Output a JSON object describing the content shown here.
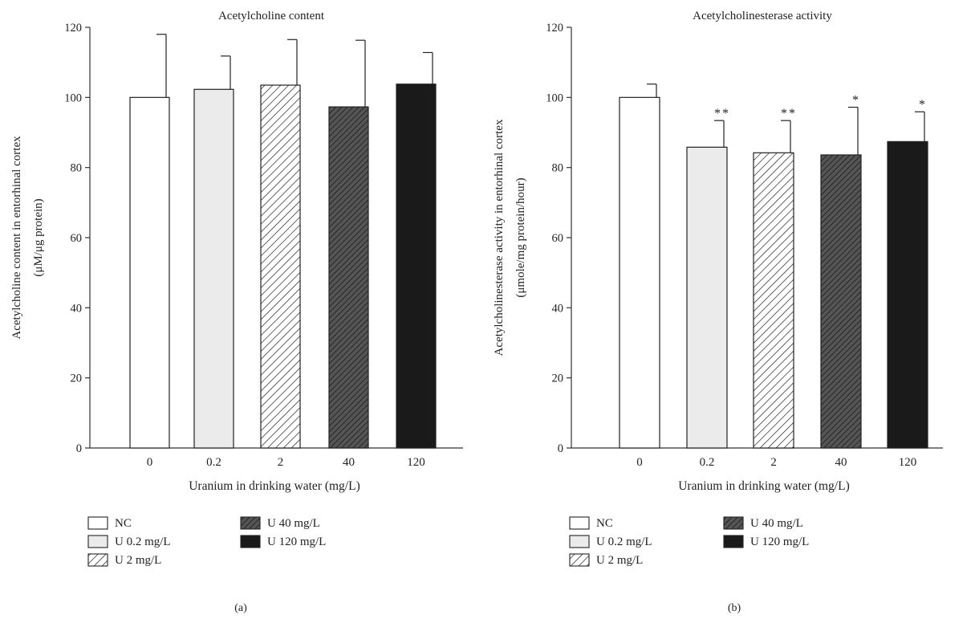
{
  "colors": {
    "axis": "#333333",
    "bar_stroke": "#222222",
    "nc_fill": "#ffffff",
    "u02_fill": "#ebebeb",
    "u2_fill": "#ffffff",
    "u40_fill": "#555555",
    "u120_fill": "#1a1a1a"
  },
  "chart_data": [
    {
      "type": "bar",
      "panel_label": "(a)",
      "title": "Acetylcholine content",
      "xlabel": "Uranium in drinking water (mg/L)",
      "ylabel_line1": "Acetylcholine content in entorhinal cortex",
      "ylabel_line2": "(μM/μg protein)",
      "ylim": [
        0,
        120
      ],
      "yticks": [
        "0",
        "20",
        "40",
        "60",
        "80",
        "100",
        "120"
      ],
      "categories": [
        "0",
        "0.2",
        "2",
        "40",
        "120"
      ],
      "values": [
        100,
        102.3,
        103.5,
        97.3,
        103.8
      ],
      "errors": [
        18,
        9.5,
        13,
        19,
        9
      ],
      "significance": [
        "",
        "",
        "",
        "",
        ""
      ],
      "fills": [
        "nc",
        "u02",
        "u2",
        "u40",
        "u120"
      ],
      "legend": [
        "NC",
        "U 0.2 mg/L",
        "U 2 mg/L",
        "U 40 mg/L",
        "U 120 mg/L"
      ],
      "grid": false
    },
    {
      "type": "bar",
      "panel_label": "(b)",
      "title": "Acetylcholinesterase activity",
      "xlabel": "Uranium in drinking water (mg/L)",
      "ylabel_line1": "Acetylcholinesterase activity in entorhinal cortex",
      "ylabel_line2": "(μmole/mg protein/hour)",
      "ylim": [
        0,
        120
      ],
      "yticks": [
        "0",
        "20",
        "40",
        "60",
        "80",
        "100",
        "120"
      ],
      "categories": [
        "0",
        "0.2",
        "2",
        "40",
        "120"
      ],
      "values": [
        100,
        85.8,
        84.2,
        83.6,
        87.4
      ],
      "errors": [
        3.8,
        7.6,
        9.2,
        13.6,
        8.5
      ],
      "significance": [
        "",
        "**",
        "**",
        "*",
        "*"
      ],
      "fills": [
        "nc",
        "u02",
        "u2",
        "u40",
        "u120"
      ],
      "legend": [
        "NC",
        "U 0.2 mg/L",
        "U 2 mg/L",
        "U 40 mg/L",
        "U 120 mg/L"
      ],
      "grid": false
    }
  ]
}
